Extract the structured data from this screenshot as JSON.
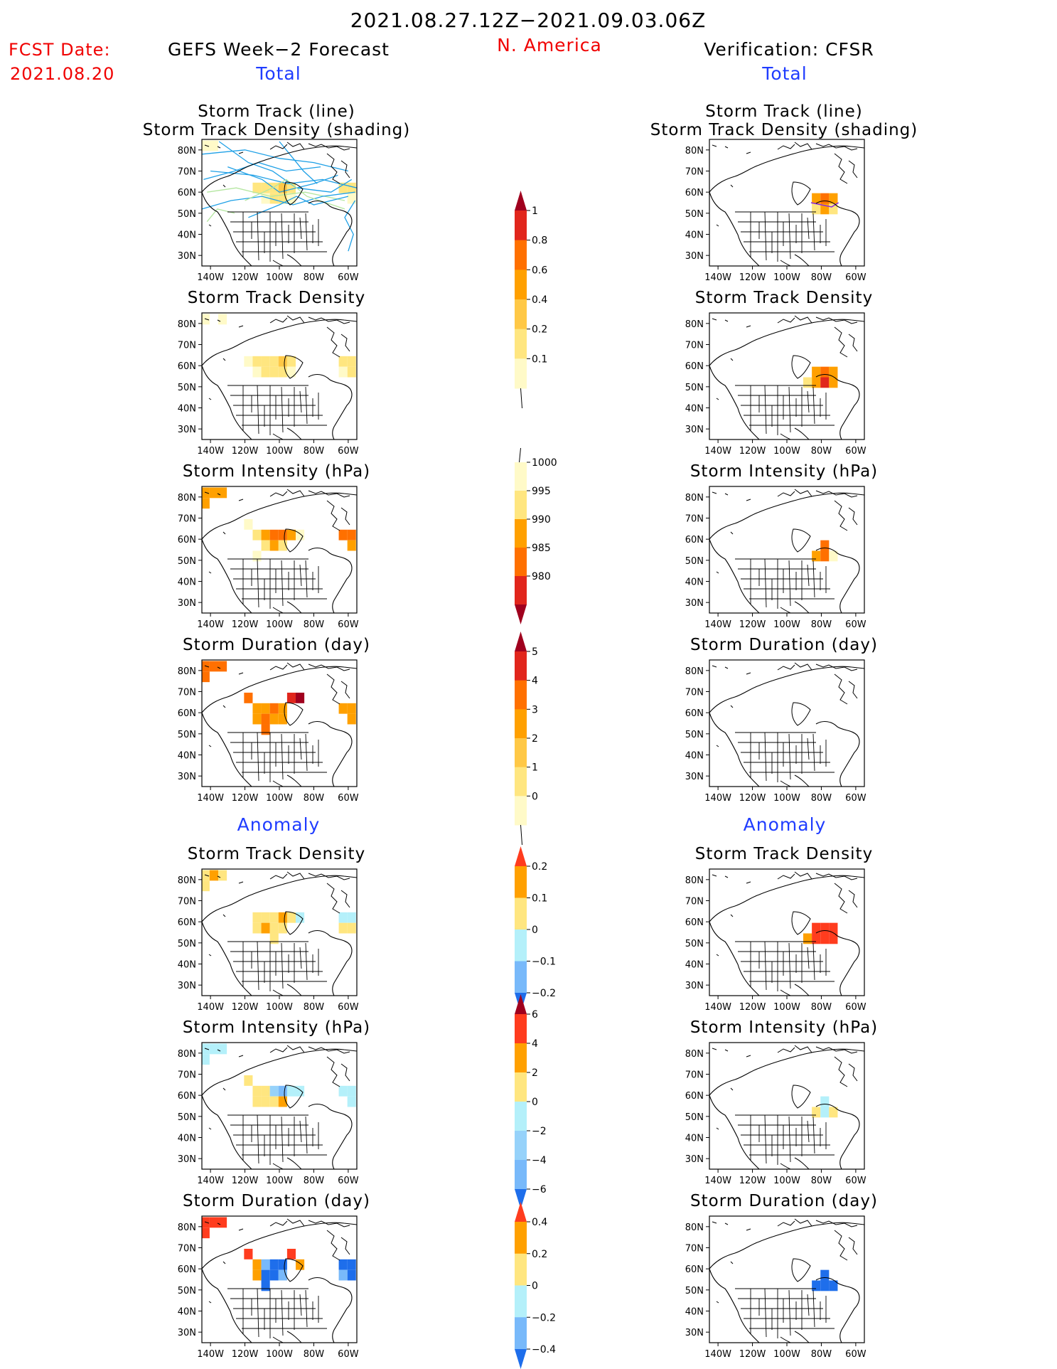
{
  "header": {
    "period": "2021.08.27.12Z−2021.09.03.06Z",
    "fcst_label": "FCST Date:",
    "fcst_date": "2021.08.20",
    "left_title": "GEFS Week−2 Forecast",
    "region": "N. America",
    "right_title": "Verification: CFSR",
    "total_label": "Total",
    "anomaly_label": "Anomaly"
  },
  "colors": {
    "red_text": "#f00000",
    "blue_text": "#1f3cff",
    "track_line": "#1ea0e6",
    "track_line_alt": "#b4e6a0"
  },
  "chart_data": {
    "type": "heatmap",
    "map": {
      "lon_ticks": [
        "140W",
        "120W",
        "100W",
        "80W",
        "60W"
      ],
      "lat_ticks": [
        "80N",
        "70N",
        "60N",
        "50N",
        "40N",
        "30N"
      ],
      "xlim": [
        -145,
        -55
      ],
      "ylim": [
        25,
        85
      ]
    },
    "panels_total": [
      {
        "title": "Storm Track (line)",
        "subtitle": "Storm Track Density (shading)",
        "colorbar": "density"
      },
      {
        "title": "Storm Track Density",
        "subtitle": "",
        "colorbar": "density"
      },
      {
        "title": "Storm Intensity (hPa)",
        "subtitle": "",
        "colorbar": "intensity"
      },
      {
        "title": "Storm Duration (day)",
        "subtitle": "",
        "colorbar": "duration"
      }
    ],
    "panels_anomaly": [
      {
        "title": "Storm Track Density",
        "colorbar": "density_anom"
      },
      {
        "title": "Storm Intensity (hPa)",
        "colorbar": "intensity_anom"
      },
      {
        "title": "Storm Duration (day)",
        "colorbar": "duration_anom"
      }
    ],
    "colorbars": {
      "density": {
        "labels": [
          "1",
          "0.8",
          "0.6",
          "0.4",
          "0.2",
          "0.1"
        ],
        "colors": [
          "#a0001e",
          "#e1261c",
          "#ff7000",
          "#ffa000",
          "#ffc846",
          "#ffe680",
          "#fffac8"
        ]
      },
      "intensity": {
        "labels": [
          "1000",
          "995",
          "990",
          "985",
          "980"
        ],
        "colors": [
          "#fffac8",
          "#ffe680",
          "#ffa000",
          "#ff7000",
          "#e1261c",
          "#a0001e"
        ]
      },
      "duration": {
        "labels": [
          "5",
          "4",
          "3",
          "2",
          "1",
          "0"
        ],
        "colors": [
          "#a0001e",
          "#e1261c",
          "#ff7000",
          "#ffa000",
          "#ffc846",
          "#ffe680",
          "#fffac8"
        ]
      },
      "density_anom": {
        "labels": [
          "0.2",
          "0.1",
          "0",
          "−0.1",
          "−0.2"
        ],
        "colors": [
          "#ff3c1e",
          "#ffa000",
          "#ffe680",
          "#b4f0fa",
          "#78b9fa",
          "#1e6eeb"
        ]
      },
      "intensity_anom": {
        "labels": [
          "6",
          "4",
          "2",
          "0",
          "−2",
          "−4",
          "−6"
        ],
        "colors": [
          "#a0001e",
          "#ff3c1e",
          "#ffa000",
          "#ffe680",
          "#b4f0fa",
          "#96d2fa",
          "#78b9fa",
          "#1e6eeb"
        ]
      },
      "duration_anom": {
        "labels": [
          "0.4",
          "0.2",
          "0",
          "−0.2",
          "−0.4"
        ],
        "colors": [
          "#ff3c1e",
          "#ffa000",
          "#ffe680",
          "#b4f0fa",
          "#78b9fa",
          "#1e6eeb"
        ]
      }
    },
    "cells": {
      "gefs_density_line": [
        [
          -143,
          82,
          "#fffac8"
        ],
        [
          -138,
          82,
          "#fffac8"
        ],
        [
          -113,
          62,
          "#ffe680"
        ],
        [
          -108,
          62,
          "#ffe680"
        ],
        [
          -103,
          62,
          "#ffe680"
        ],
        [
          -98,
          62,
          "#ffc846"
        ],
        [
          -93,
          62,
          "#ffe680"
        ],
        [
          -108,
          57,
          "#fffac8"
        ],
        [
          -103,
          57,
          "#ffe680"
        ],
        [
          -98,
          57,
          "#ffe680"
        ],
        [
          -93,
          57,
          "#fffac8"
        ],
        [
          -63,
          62,
          "#ffe680"
        ],
        [
          -58,
          62,
          "#ffe680"
        ],
        [
          -58,
          57,
          "#fffac8"
        ]
      ],
      "gefs_density": [
        [
          -143,
          82,
          "#fffac8"
        ],
        [
          -133,
          82,
          "#fffac8"
        ],
        [
          -118,
          62,
          "#fffac8"
        ],
        [
          -113,
          62,
          "#ffe680"
        ],
        [
          -108,
          62,
          "#ffe680"
        ],
        [
          -103,
          62,
          "#ffe680"
        ],
        [
          -98,
          62,
          "#ffc846"
        ],
        [
          -93,
          62,
          "#ffe680"
        ],
        [
          -113,
          57,
          "#fffac8"
        ],
        [
          -108,
          57,
          "#ffe680"
        ],
        [
          -103,
          57,
          "#ffe680"
        ],
        [
          -98,
          57,
          "#ffe680"
        ],
        [
          -93,
          57,
          "#fffac8"
        ],
        [
          -63,
          62,
          "#ffe680"
        ],
        [
          -58,
          62,
          "#ffe680"
        ],
        [
          -58,
          57,
          "#ffe680"
        ],
        [
          -63,
          57,
          "#fffac8"
        ]
      ],
      "gefs_intensity": [
        [
          -143,
          82,
          "#ffa000"
        ],
        [
          -138,
          82,
          "#ffa000"
        ],
        [
          -133,
          82,
          "#ffa000"
        ],
        [
          -143,
          77,
          "#ffa000"
        ],
        [
          -118,
          67,
          "#fffac8"
        ],
        [
          -113,
          62,
          "#ffe680"
        ],
        [
          -108,
          62,
          "#ffa000"
        ],
        [
          -103,
          62,
          "#ff7000"
        ],
        [
          -98,
          62,
          "#ff7000"
        ],
        [
          -93,
          62,
          "#ffa000"
        ],
        [
          -88,
          62,
          "#fffac8"
        ],
        [
          -108,
          57,
          "#ffe680"
        ],
        [
          -103,
          57,
          "#ffa000"
        ],
        [
          -98,
          57,
          "#ffe680"
        ],
        [
          -113,
          52,
          "#fffac8"
        ],
        [
          -63,
          62,
          "#ff7000"
        ],
        [
          -58,
          62,
          "#ff7000"
        ],
        [
          -58,
          57,
          "#ffa000"
        ]
      ],
      "gefs_duration": [
        [
          -143,
          82,
          "#ff7000"
        ],
        [
          -138,
          82,
          "#ff7000"
        ],
        [
          -133,
          82,
          "#ff7000"
        ],
        [
          -143,
          77,
          "#ff7000"
        ],
        [
          -118,
          67,
          "#ff7000"
        ],
        [
          -113,
          62,
          "#ffa000"
        ],
        [
          -108,
          62,
          "#ffa000"
        ],
        [
          -103,
          62,
          "#ff7000"
        ],
        [
          -98,
          62,
          "#ffa000"
        ],
        [
          -93,
          67,
          "#e1261c"
        ],
        [
          -88,
          67,
          "#a0001e"
        ],
        [
          -108,
          57,
          "#ff7000"
        ],
        [
          -103,
          57,
          "#ffa000"
        ],
        [
          -98,
          57,
          "#ffa000"
        ],
        [
          -113,
          57,
          "#ffa000"
        ],
        [
          -108,
          52,
          "#ff7000"
        ],
        [
          -63,
          62,
          "#ffa000"
        ],
        [
          -58,
          62,
          "#ffa000"
        ],
        [
          -58,
          57,
          "#ffa000"
        ]
      ],
      "gefs_density_anom": [
        [
          -143,
          82,
          "#ffe680"
        ],
        [
          -138,
          82,
          "#ffa000"
        ],
        [
          -133,
          82,
          "#ffe680"
        ],
        [
          -143,
          77,
          "#ffe680"
        ],
        [
          -113,
          62,
          "#ffe680"
        ],
        [
          -108,
          62,
          "#ffe680"
        ],
        [
          -103,
          62,
          "#ffe680"
        ],
        [
          -98,
          62,
          "#ffa000"
        ],
        [
          -93,
          62,
          "#ffe680"
        ],
        [
          -88,
          62,
          "#b4f0fa"
        ],
        [
          -113,
          57,
          "#ffe680"
        ],
        [
          -108,
          57,
          "#ffa000"
        ],
        [
          -103,
          57,
          "#ffe680"
        ],
        [
          -98,
          57,
          "#ffe680"
        ],
        [
          -103,
          52,
          "#ffe680"
        ],
        [
          -63,
          62,
          "#b4f0fa"
        ],
        [
          -58,
          62,
          "#b4f0fa"
        ],
        [
          -63,
          57,
          "#ffe680"
        ],
        [
          -58,
          57,
          "#ffe680"
        ]
      ],
      "gefs_intensity_anom": [
        [
          -143,
          82,
          "#b4f0fa"
        ],
        [
          -138,
          82,
          "#b4f0fa"
        ],
        [
          -133,
          82,
          "#b4f0fa"
        ],
        [
          -143,
          77,
          "#b4f0fa"
        ],
        [
          -118,
          67,
          "#ffe680"
        ],
        [
          -113,
          62,
          "#ffe680"
        ],
        [
          -108,
          62,
          "#ffe680"
        ],
        [
          -103,
          62,
          "#96d2fa"
        ],
        [
          -98,
          62,
          "#78b9fa"
        ],
        [
          -93,
          62,
          "#b4f0fa"
        ],
        [
          -88,
          62,
          "#b4f0fa"
        ],
        [
          -108,
          57,
          "#ffe680"
        ],
        [
          -103,
          57,
          "#ffe680"
        ],
        [
          -98,
          57,
          "#ffa000"
        ],
        [
          -113,
          57,
          "#ffe680"
        ],
        [
          -63,
          62,
          "#b4f0fa"
        ],
        [
          -58,
          62,
          "#b4f0fa"
        ],
        [
          -58,
          57,
          "#b4f0fa"
        ]
      ],
      "gefs_duration_anom": [
        [
          -143,
          82,
          "#ff3c1e"
        ],
        [
          -138,
          82,
          "#ff3c1e"
        ],
        [
          -133,
          82,
          "#ff3c1e"
        ],
        [
          -143,
          77,
          "#ff3c1e"
        ],
        [
          -118,
          67,
          "#ff3c1e"
        ],
        [
          -113,
          62,
          "#ffa000"
        ],
        [
          -108,
          62,
          "#78b9fa"
        ],
        [
          -103,
          62,
          "#1e6eeb"
        ],
        [
          -98,
          62,
          "#1e6eeb"
        ],
        [
          -93,
          67,
          "#ff3c1e"
        ],
        [
          -88,
          62,
          "#ffa000"
        ],
        [
          -108,
          57,
          "#1e6eeb"
        ],
        [
          -103,
          57,
          "#1e6eeb"
        ],
        [
          -98,
          57,
          "#78b9fa"
        ],
        [
          -113,
          57,
          "#ffa000"
        ],
        [
          -108,
          52,
          "#1e6eeb"
        ],
        [
          -63,
          62,
          "#1e6eeb"
        ],
        [
          -58,
          62,
          "#1e6eeb"
        ],
        [
          -58,
          57,
          "#1e6eeb"
        ],
        [
          -63,
          57,
          "#78b9fa"
        ]
      ],
      "cfsr_density_line": [
        [
          -83,
          57,
          "#ffa000"
        ],
        [
          -78,
          57,
          "#ff7000"
        ],
        [
          -73,
          57,
          "#ffa000"
        ],
        [
          -83,
          52,
          "#ffe680"
        ],
        [
          -78,
          52,
          "#ffa000"
        ],
        [
          -73,
          52,
          "#ffe680"
        ]
      ],
      "cfsr_density": [
        [
          -83,
          57,
          "#ffa000"
        ],
        [
          -78,
          57,
          "#ff7000"
        ],
        [
          -73,
          57,
          "#ffa000"
        ],
        [
          -83,
          52,
          "#ffa000"
        ],
        [
          -78,
          52,
          "#e1261c"
        ],
        [
          -73,
          52,
          "#ffa000"
        ],
        [
          -88,
          52,
          "#ffe680"
        ]
      ],
      "cfsr_intensity": [
        [
          -83,
          52,
          "#ffa000"
        ],
        [
          -78,
          57,
          "#ff7000"
        ],
        [
          -78,
          52,
          "#ff7000"
        ],
        [
          -73,
          52,
          "#fffac8"
        ]
      ],
      "cfsr_duration": [],
      "cfsr_density_anom": [
        [
          -88,
          52,
          "#ffa000"
        ],
        [
          -83,
          57,
          "#ff3c1e"
        ],
        [
          -78,
          57,
          "#ff3c1e"
        ],
        [
          -73,
          57,
          "#ff3c1e"
        ],
        [
          -83,
          52,
          "#ff3c1e"
        ],
        [
          -78,
          52,
          "#ff3c1e"
        ],
        [
          -73,
          52,
          "#ff3c1e"
        ]
      ],
      "cfsr_intensity_anom": [
        [
          -83,
          52,
          "#ffe680"
        ],
        [
          -78,
          57,
          "#b4f0fa"
        ],
        [
          -78,
          52,
          "#b4f0fa"
        ],
        [
          -73,
          52,
          "#ffe680"
        ]
      ],
      "cfsr_duration_anom": [
        [
          -83,
          52,
          "#1e6eeb"
        ],
        [
          -78,
          57,
          "#1e6eeb"
        ],
        [
          -78,
          52,
          "#1e6eeb"
        ],
        [
          -73,
          52,
          "#1e6eeb"
        ]
      ]
    }
  }
}
